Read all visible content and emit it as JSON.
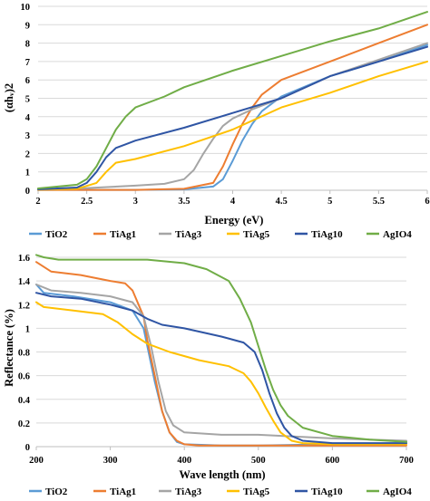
{
  "chart_data": [
    {
      "type": "line",
      "title": "",
      "xlabel": "Energy (eV)",
      "ylabel": "(αhᵥ)2",
      "xlim": [
        2,
        6
      ],
      "ylim": [
        0,
        10
      ],
      "xticks": [
        "2",
        "2.5",
        "3",
        "3.5",
        "4",
        "4.5",
        "5",
        "5.5",
        "6"
      ],
      "yticks": [
        "0",
        "1",
        "2",
        "3",
        "4",
        "5",
        "6",
        "7",
        "8",
        "9",
        "10"
      ],
      "grid": "horizontal",
      "legend": "bottom",
      "series": [
        {
          "name": "TiO2",
          "color": "#5b9bd5",
          "x": [
            2,
            2.5,
            3,
            3.5,
            3.8,
            3.9,
            4.0,
            4.1,
            4.2,
            4.3,
            4.5,
            5,
            5.5,
            6
          ],
          "y": [
            0.02,
            0.02,
            0.02,
            0.05,
            0.2,
            0.6,
            1.6,
            2.7,
            3.6,
            4.3,
            5.1,
            6.2,
            7.0,
            7.9
          ]
        },
        {
          "name": "TiAg1",
          "color": "#ed7d31",
          "x": [
            2,
            2.5,
            3,
            3.5,
            3.8,
            3.9,
            4.0,
            4.1,
            4.2,
            4.3,
            4.5,
            5,
            5.5,
            6
          ],
          "y": [
            0.02,
            0.02,
            0.02,
            0.08,
            0.4,
            1.3,
            2.5,
            3.6,
            4.5,
            5.2,
            6.0,
            7.0,
            8.0,
            9.0
          ]
        },
        {
          "name": "TiAg3",
          "color": "#a5a5a5",
          "x": [
            2,
            2.5,
            3,
            3.3,
            3.5,
            3.6,
            3.7,
            3.8,
            3.9,
            4.0,
            4.2,
            4.5,
            5,
            5.5,
            6
          ],
          "y": [
            0.05,
            0.12,
            0.25,
            0.35,
            0.6,
            1.1,
            2.0,
            2.8,
            3.5,
            3.9,
            4.4,
            5.0,
            6.2,
            7.1,
            8.0
          ]
        },
        {
          "name": "TiAg5",
          "color": "#ffc000",
          "x": [
            2,
            2.4,
            2.6,
            2.7,
            2.8,
            3,
            3.5,
            4,
            4.5,
            5,
            5.5,
            6
          ],
          "y": [
            0.03,
            0.08,
            0.4,
            1.0,
            1.5,
            1.7,
            2.4,
            3.3,
            4.5,
            5.3,
            6.2,
            7.0
          ]
        },
        {
          "name": "TiAg10",
          "color": "#2f55a4",
          "x": [
            2,
            2.4,
            2.5,
            2.6,
            2.7,
            2.8,
            2.9,
            3,
            3.5,
            4,
            4.5,
            5,
            5.5,
            6
          ],
          "y": [
            0.05,
            0.15,
            0.4,
            1.0,
            1.8,
            2.3,
            2.5,
            2.7,
            3.4,
            4.2,
            5.0,
            6.2,
            7.0,
            7.8
          ]
        },
        {
          "name": "AgIO4",
          "color": "#70ad47",
          "x": [
            2,
            2.4,
            2.5,
            2.6,
            2.7,
            2.8,
            2.9,
            3,
            3.3,
            3.5,
            4,
            4.5,
            5,
            5.5,
            6
          ],
          "y": [
            0.1,
            0.3,
            0.6,
            1.3,
            2.3,
            3.3,
            4.0,
            4.5,
            5.1,
            5.6,
            6.5,
            7.3,
            8.1,
            8.8,
            9.7
          ]
        }
      ]
    },
    {
      "type": "line",
      "title": "",
      "xlabel": "Wave length (nm)",
      "ylabel": "Reflectance (%)",
      "xlim": [
        200,
        700
      ],
      "ylim": [
        0,
        1.6
      ],
      "xticks": [
        "200",
        "300",
        "400",
        "500",
        "600",
        "700"
      ],
      "yticks": [
        "0",
        "0.2",
        "0.4",
        "0.6",
        "0.8",
        "1",
        "1.2",
        "1.4",
        "1.6"
      ],
      "grid": "horizontal",
      "legend": "bottom",
      "series": [
        {
          "name": "TiO2",
          "color": "#5b9bd5",
          "x": [
            200,
            210,
            250,
            300,
            330,
            345,
            350,
            360,
            370,
            380,
            390,
            400,
            450,
            500,
            600,
            700
          ],
          "y": [
            1.37,
            1.3,
            1.27,
            1.22,
            1.15,
            1.0,
            0.85,
            0.55,
            0.3,
            0.12,
            0.04,
            0.02,
            0.01,
            0.01,
            0.02,
            0.03
          ]
        },
        {
          "name": "TiAg1",
          "color": "#ed7d31",
          "x": [
            200,
            220,
            260,
            300,
            320,
            330,
            345,
            350,
            360,
            370,
            380,
            390,
            400,
            420,
            450,
            500,
            700
          ],
          "y": [
            1.56,
            1.48,
            1.45,
            1.4,
            1.38,
            1.32,
            1.1,
            0.9,
            0.6,
            0.3,
            0.12,
            0.05,
            0.02,
            0.01,
            0.01,
            0.01,
            0.01
          ]
        },
        {
          "name": "TiAg3",
          "color": "#a5a5a5",
          "x": [
            200,
            220,
            260,
            300,
            330,
            345,
            355,
            365,
            375,
            385,
            400,
            450,
            500,
            600,
            700
          ],
          "y": [
            1.37,
            1.32,
            1.3,
            1.27,
            1.22,
            1.1,
            0.85,
            0.55,
            0.3,
            0.18,
            0.12,
            0.1,
            0.1,
            0.07,
            0.05
          ]
        },
        {
          "name": "TiAg5",
          "color": "#ffc000",
          "x": [
            200,
            210,
            250,
            290,
            310,
            330,
            350,
            380,
            420,
            460,
            480,
            490,
            500,
            510,
            520,
            530,
            545,
            560,
            600,
            700
          ],
          "y": [
            1.22,
            1.18,
            1.15,
            1.12,
            1.05,
            0.95,
            0.87,
            0.8,
            0.73,
            0.68,
            0.62,
            0.55,
            0.45,
            0.33,
            0.22,
            0.12,
            0.05,
            0.03,
            0.02,
            0.02
          ]
        },
        {
          "name": "TiAg10",
          "color": "#2f55a4",
          "x": [
            200,
            220,
            260,
            300,
            330,
            350,
            370,
            400,
            450,
            480,
            495,
            505,
            515,
            525,
            535,
            545,
            560,
            600,
            700
          ],
          "y": [
            1.3,
            1.27,
            1.25,
            1.2,
            1.15,
            1.08,
            1.03,
            1.0,
            0.93,
            0.88,
            0.8,
            0.65,
            0.45,
            0.28,
            0.16,
            0.09,
            0.05,
            0.03,
            0.03
          ]
        },
        {
          "name": "AgIO4",
          "color": "#70ad47",
          "x": [
            200,
            210,
            230,
            260,
            300,
            350,
            400,
            430,
            460,
            475,
            490,
            500,
            510,
            520,
            530,
            540,
            560,
            600,
            650,
            700
          ],
          "y": [
            1.62,
            1.6,
            1.58,
            1.58,
            1.58,
            1.58,
            1.55,
            1.5,
            1.4,
            1.25,
            1.05,
            0.85,
            0.65,
            0.48,
            0.35,
            0.26,
            0.16,
            0.09,
            0.06,
            0.04
          ]
        }
      ]
    }
  ]
}
